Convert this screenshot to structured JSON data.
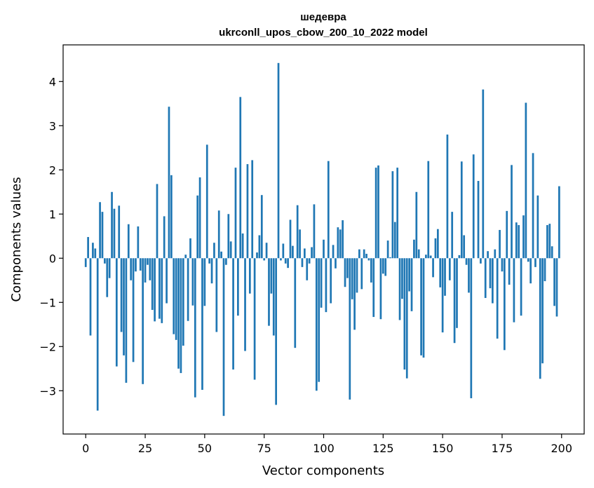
{
  "chart_data": {
    "type": "bar",
    "title_line1": "шедевра",
    "title_line2": "ukrconll_upos_cbow_200_10_2022 model",
    "xlabel": "Vector components",
    "ylabel": "Components values",
    "xlim": [
      -9.5,
      209.5
    ],
    "ylim": [
      -3.98,
      4.83
    ],
    "xticks": [
      0,
      25,
      50,
      75,
      100,
      125,
      150,
      175,
      200
    ],
    "yticks": [
      -3,
      -2,
      -1,
      0,
      1,
      2,
      3,
      4
    ],
    "bar_color": "#1f77b4",
    "grid": false,
    "legend": "none",
    "x": [
      0,
      1,
      2,
      3,
      4,
      5,
      6,
      7,
      8,
      9,
      10,
      11,
      12,
      13,
      14,
      15,
      16,
      17,
      18,
      19,
      20,
      21,
      22,
      23,
      24,
      25,
      26,
      27,
      28,
      29,
      30,
      31,
      32,
      33,
      34,
      35,
      36,
      37,
      38,
      39,
      40,
      41,
      42,
      43,
      44,
      45,
      46,
      47,
      48,
      49,
      50,
      51,
      52,
      53,
      54,
      55,
      56,
      57,
      58,
      59,
      60,
      61,
      62,
      63,
      64,
      65,
      66,
      67,
      68,
      69,
      70,
      71,
      72,
      73,
      74,
      75,
      76,
      77,
      78,
      79,
      80,
      81,
      82,
      83,
      84,
      85,
      86,
      87,
      88,
      89,
      90,
      91,
      92,
      93,
      94,
      95,
      96,
      97,
      98,
      99,
      100,
      101,
      102,
      103,
      104,
      105,
      106,
      107,
      108,
      109,
      110,
      111,
      112,
      113,
      114,
      115,
      116,
      117,
      118,
      119,
      120,
      121,
      122,
      123,
      124,
      125,
      126,
      127,
      128,
      129,
      130,
      131,
      132,
      133,
      134,
      135,
      136,
      137,
      138,
      139,
      140,
      141,
      142,
      143,
      144,
      145,
      146,
      147,
      148,
      149,
      150,
      151,
      152,
      153,
      154,
      155,
      156,
      157,
      158,
      159,
      160,
      161,
      162,
      163,
      164,
      165,
      166,
      167,
      168,
      169,
      170,
      171,
      172,
      173,
      174,
      175,
      176,
      177,
      178,
      179,
      180,
      181,
      182,
      183,
      184,
      185,
      186,
      187,
      188,
      189,
      190,
      191,
      192,
      193,
      194,
      195,
      196,
      197,
      198,
      199
    ],
    "values": [
      -0.2,
      0.48,
      -1.75,
      0.35,
      0.22,
      -3.45,
      1.27,
      1.05,
      -0.12,
      -0.88,
      -0.45,
      1.5,
      1.12,
      -2.45,
      1.19,
      -1.67,
      -2.2,
      -2.82,
      0.77,
      -0.5,
      -2.35,
      -0.3,
      0.72,
      -0.28,
      -2.85,
      -0.55,
      -0.15,
      -0.5,
      -1.17,
      -1.43,
      1.68,
      -1.37,
      -1.47,
      0.95,
      -1.02,
      3.43,
      1.88,
      -1.72,
      -1.85,
      -2.5,
      -2.6,
      -1.98,
      0.08,
      -1.42,
      0.45,
      -1.07,
      -3.15,
      1.42,
      1.83,
      -2.98,
      -1.08,
      2.57,
      -0.12,
      -0.57,
      0.35,
      -1.67,
      1.08,
      0.15,
      -3.57,
      -0.15,
      1.0,
      0.38,
      -2.52,
      2.05,
      -1.3,
      3.65,
      0.56,
      -2.1,
      2.13,
      -0.8,
      2.22,
      -2.75,
      0.13,
      0.52,
      1.43,
      -0.05,
      0.35,
      -1.53,
      -0.8,
      -1.75,
      -3.32,
      4.42,
      -0.05,
      0.33,
      -0.12,
      -0.22,
      0.87,
      0.28,
      -2.03,
      1.2,
      0.65,
      -0.2,
      0.22,
      -0.5,
      -0.12,
      0.25,
      1.22,
      -3.0,
      -2.8,
      -1.12,
      0.42,
      -1.22,
      2.2,
      -1.02,
      0.3,
      -0.23,
      0.7,
      0.65,
      0.86,
      -0.65,
      -0.45,
      -3.2,
      -0.93,
      -1.62,
      -0.78,
      0.2,
      -0.7,
      0.2,
      0.1,
      -0.05,
      -0.55,
      -1.33,
      2.05,
      2.1,
      -1.38,
      -0.35,
      -0.4,
      0.4,
      0.02,
      1.97,
      0.82,
      2.05,
      -1.4,
      -0.92,
      -2.52,
      -2.72,
      -0.75,
      -1.2,
      0.42,
      1.5,
      0.2,
      -2.2,
      -2.25,
      0.08,
      2.2,
      0.06,
      -0.43,
      0.45,
      0.66,
      -0.66,
      -1.68,
      -0.85,
      2.8,
      -0.5,
      1.05,
      -1.92,
      -1.58,
      0.07,
      2.19,
      0.52,
      -0.15,
      -0.78,
      -3.17,
      2.35,
      0.0,
      1.75,
      -0.12,
      3.82,
      -0.9,
      0.16,
      -0.68,
      -1.02,
      0.2,
      -1.82,
      0.64,
      -0.3,
      -2.08,
      1.07,
      -0.6,
      2.11,
      -1.45,
      0.81,
      0.75,
      -1.3,
      0.97,
      3.52,
      -0.08,
      -0.57,
      2.38,
      -0.2,
      1.42,
      -2.73,
      -2.38,
      -0.52,
      0.75,
      0.78,
      0.27,
      -1.08,
      -1.32,
      1.63
    ]
  }
}
